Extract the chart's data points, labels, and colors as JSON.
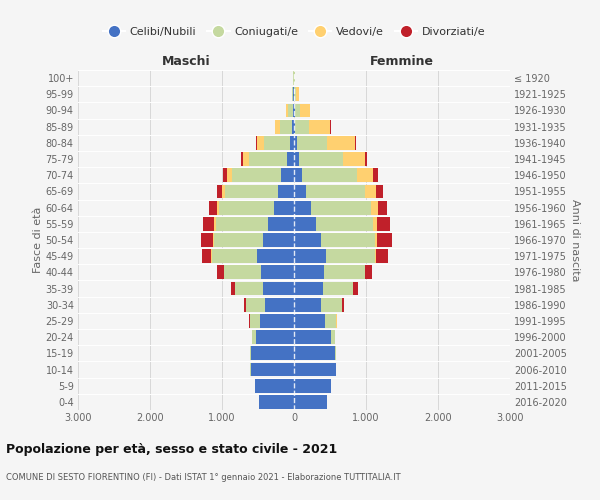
{
  "age_groups": [
    "0-4",
    "5-9",
    "10-14",
    "15-19",
    "20-24",
    "25-29",
    "30-34",
    "35-39",
    "40-44",
    "45-49",
    "50-54",
    "55-59",
    "60-64",
    "65-69",
    "70-74",
    "75-79",
    "80-84",
    "85-89",
    "90-94",
    "95-99",
    "100+"
  ],
  "birth_years": [
    "2016-2020",
    "2011-2015",
    "2006-2010",
    "2001-2005",
    "1996-2000",
    "1991-1995",
    "1986-1990",
    "1981-1985",
    "1976-1980",
    "1971-1975",
    "1966-1970",
    "1961-1965",
    "1956-1960",
    "1951-1955",
    "1946-1950",
    "1941-1945",
    "1936-1940",
    "1931-1935",
    "1926-1930",
    "1921-1925",
    "≤ 1920"
  ],
  "maschi": {
    "celibi": [
      490,
      540,
      600,
      600,
      530,
      470,
      400,
      430,
      460,
      510,
      430,
      360,
      280,
      220,
      180,
      100,
      50,
      30,
      20,
      10,
      5
    ],
    "coniugati": [
      2,
      3,
      5,
      10,
      50,
      140,
      270,
      390,
      510,
      630,
      680,
      730,
      760,
      740,
      680,
      520,
      360,
      160,
      60,
      15,
      5
    ],
    "vedovi": [
      0,
      0,
      0,
      0,
      1,
      1,
      2,
      3,
      5,
      8,
      12,
      18,
      30,
      45,
      70,
      90,
      100,
      70,
      25,
      8,
      2
    ],
    "divorziati": [
      0,
      0,
      1,
      2,
      4,
      8,
      20,
      50,
      90,
      130,
      170,
      150,
      110,
      70,
      50,
      25,
      12,
      5,
      2,
      1,
      0
    ]
  },
  "femmine": {
    "nubili": [
      460,
      510,
      580,
      570,
      510,
      430,
      370,
      400,
      420,
      450,
      380,
      300,
      230,
      160,
      110,
      65,
      35,
      15,
      8,
      5,
      3
    ],
    "coniugate": [
      2,
      3,
      5,
      10,
      60,
      160,
      290,
      420,
      560,
      680,
      750,
      800,
      840,
      820,
      760,
      620,
      430,
      200,
      75,
      20,
      5
    ],
    "vedove": [
      0,
      0,
      0,
      0,
      1,
      2,
      3,
      5,
      10,
      15,
      28,
      55,
      95,
      160,
      230,
      300,
      380,
      290,
      140,
      40,
      8
    ],
    "divorziate": [
      0,
      0,
      1,
      2,
      5,
      10,
      25,
      60,
      100,
      160,
      210,
      180,
      130,
      90,
      60,
      30,
      15,
      6,
      2,
      1,
      0
    ]
  },
  "colors": {
    "celibi": "#4472C4",
    "coniugati": "#C5D9A0",
    "vedovi": "#FFD070",
    "divorziati": "#C0202A"
  },
  "legend_labels": [
    "Celibi/Nubili",
    "Coniugati/e",
    "Vedovi/e",
    "Divorziati/e"
  ],
  "title": "Popolazione per età, sesso e stato civile - 2021",
  "subtitle": "COMUNE DI SESTO FIORENTINO (FI) - Dati ISTAT 1° gennaio 2021 - Elaborazione TUTTITALIA.IT",
  "ylabel_left": "Fasce di età",
  "ylabel_right": "Anni di nascita",
  "xlabel_maschi": "Maschi",
  "xlabel_femmine": "Femmine",
  "xlim": 3000,
  "xticks": [
    -3000,
    -2000,
    -1000,
    0,
    1000,
    2000,
    3000
  ],
  "background_color": "#f5f5f5",
  "grid_color": "#cccccc"
}
